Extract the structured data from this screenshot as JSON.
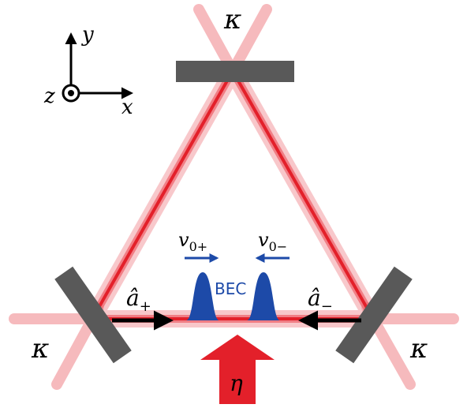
{
  "colors": {
    "beam_core": "#e3202a",
    "beam_glow": "#f4a3a8",
    "mirror": "#595959",
    "bec": "#1d4aa8",
    "arrow_black": "#000000",
    "pump": "#e3202a"
  },
  "labels": {
    "kappa_top": "κ",
    "kappa_left": "κ",
    "kappa_right": "κ",
    "axis_x": "x",
    "axis_y": "y",
    "axis_z": "z",
    "v_plus_base": "v",
    "v_plus_sub": "0+",
    "v_minus_base": "v",
    "v_minus_sub": "0−",
    "bec": "BEC",
    "a_plus_base": "â",
    "a_plus_sub": "+",
    "a_minus_base": "â",
    "a_minus_sub": "−",
    "pump": "η"
  }
}
